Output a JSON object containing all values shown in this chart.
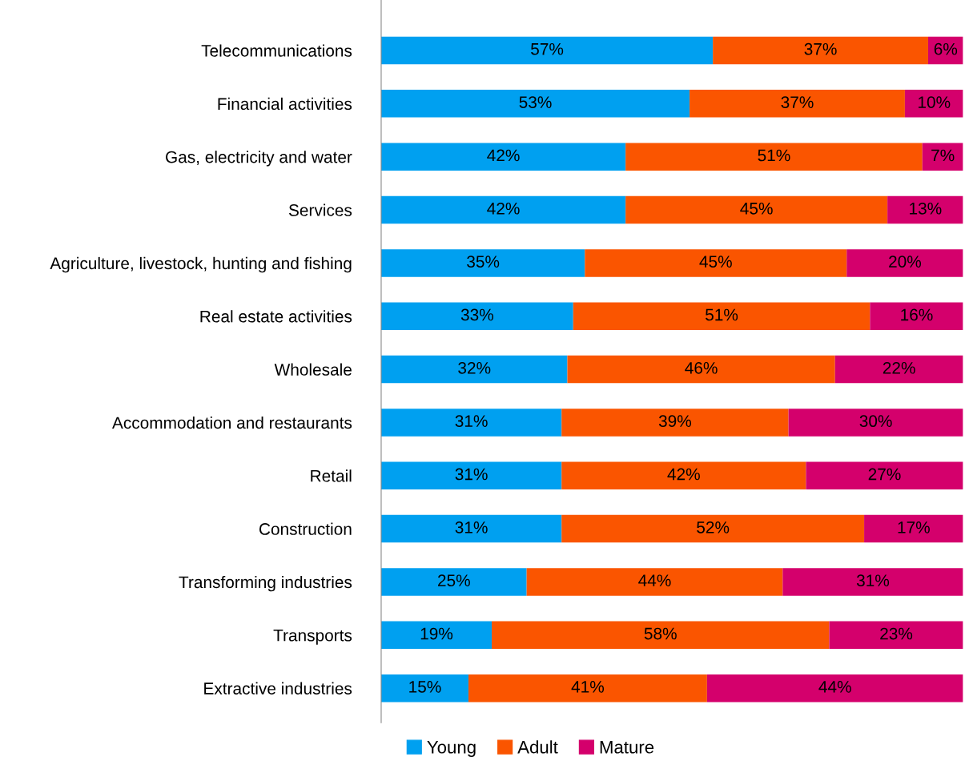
{
  "chart_data": {
    "type": "bar",
    "orientation": "horizontal",
    "stacked": true,
    "legend": "bottom",
    "grid": false,
    "tick_labels": "y",
    "categories": [
      "Telecommunications",
      "Financial activities",
      "Gas, electricity and water",
      "Services",
      "Agriculture, livestock, hunting and fishing",
      "Real estate activities",
      "Wholesale",
      "Accommodation and restaurants",
      "Retail",
      "Construction",
      "Transforming industries",
      "Transports",
      "Extractive industries"
    ],
    "series": [
      {
        "name": "Young",
        "color": "#00a0f0",
        "values": [
          57,
          53,
          42,
          42,
          35,
          33,
          32,
          31,
          31,
          31,
          25,
          19,
          15
        ],
        "value_labels": [
          "57%",
          "53%",
          "42%",
          "42%",
          "35%",
          "33%",
          "32%",
          "31%",
          "31%",
          "31%",
          "25%",
          "19%",
          "15%"
        ]
      },
      {
        "name": "Adult",
        "color": "#fa5500",
        "values": [
          37,
          37,
          51,
          45,
          45,
          51,
          46,
          39,
          42,
          52,
          44,
          58,
          41
        ],
        "value_labels": [
          "37%",
          "37%",
          "51%",
          "45%",
          "45%",
          "51%",
          "46%",
          "39%",
          "42%",
          "52%",
          "44%",
          "58%",
          "41%"
        ]
      },
      {
        "name": "Mature",
        "color": "#d4006c",
        "values": [
          6,
          10,
          7,
          13,
          20,
          16,
          22,
          30,
          27,
          17,
          31,
          23,
          44
        ],
        "value_labels": [
          "6%",
          "10%",
          "7%",
          "13%",
          "20%",
          "16%",
          "22%",
          "30%",
          "27%",
          "17%",
          "31%",
          "23%",
          "44%"
        ]
      }
    ]
  }
}
